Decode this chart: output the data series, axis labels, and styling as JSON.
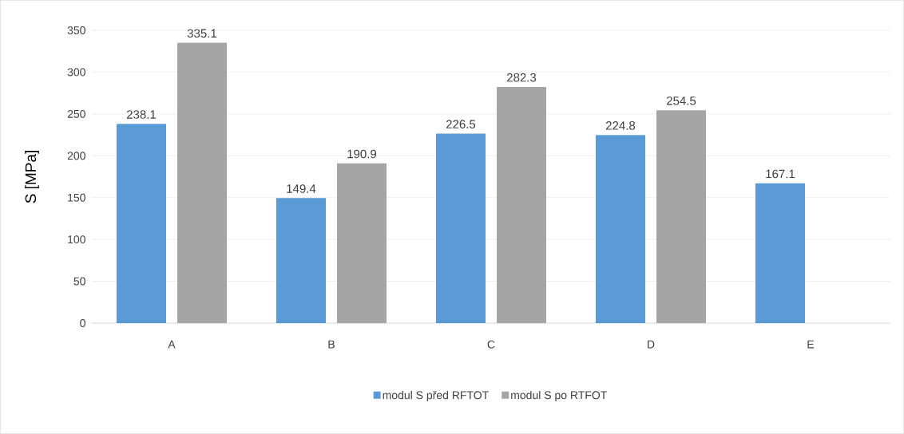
{
  "chart_data": {
    "type": "bar",
    "ylabel": "S [MPa]",
    "categories": [
      "A",
      "B",
      "C",
      "D",
      "E"
    ],
    "series": [
      {
        "name": "modul S před RFTOT",
        "color": "#5b9bd5",
        "values": [
          238.1,
          149.4,
          226.5,
          224.8,
          167.1
        ]
      },
      {
        "name": "modul S po RTFOT",
        "color": "#a5a5a5",
        "values": [
          335.1,
          190.9,
          282.3,
          254.5,
          null
        ]
      }
    ],
    "ylim": [
      0,
      350
    ],
    "yticks": [
      0,
      50,
      100,
      150,
      200,
      250,
      300,
      350
    ],
    "grid": "y",
    "legend": "bottom",
    "data_labels": true
  }
}
